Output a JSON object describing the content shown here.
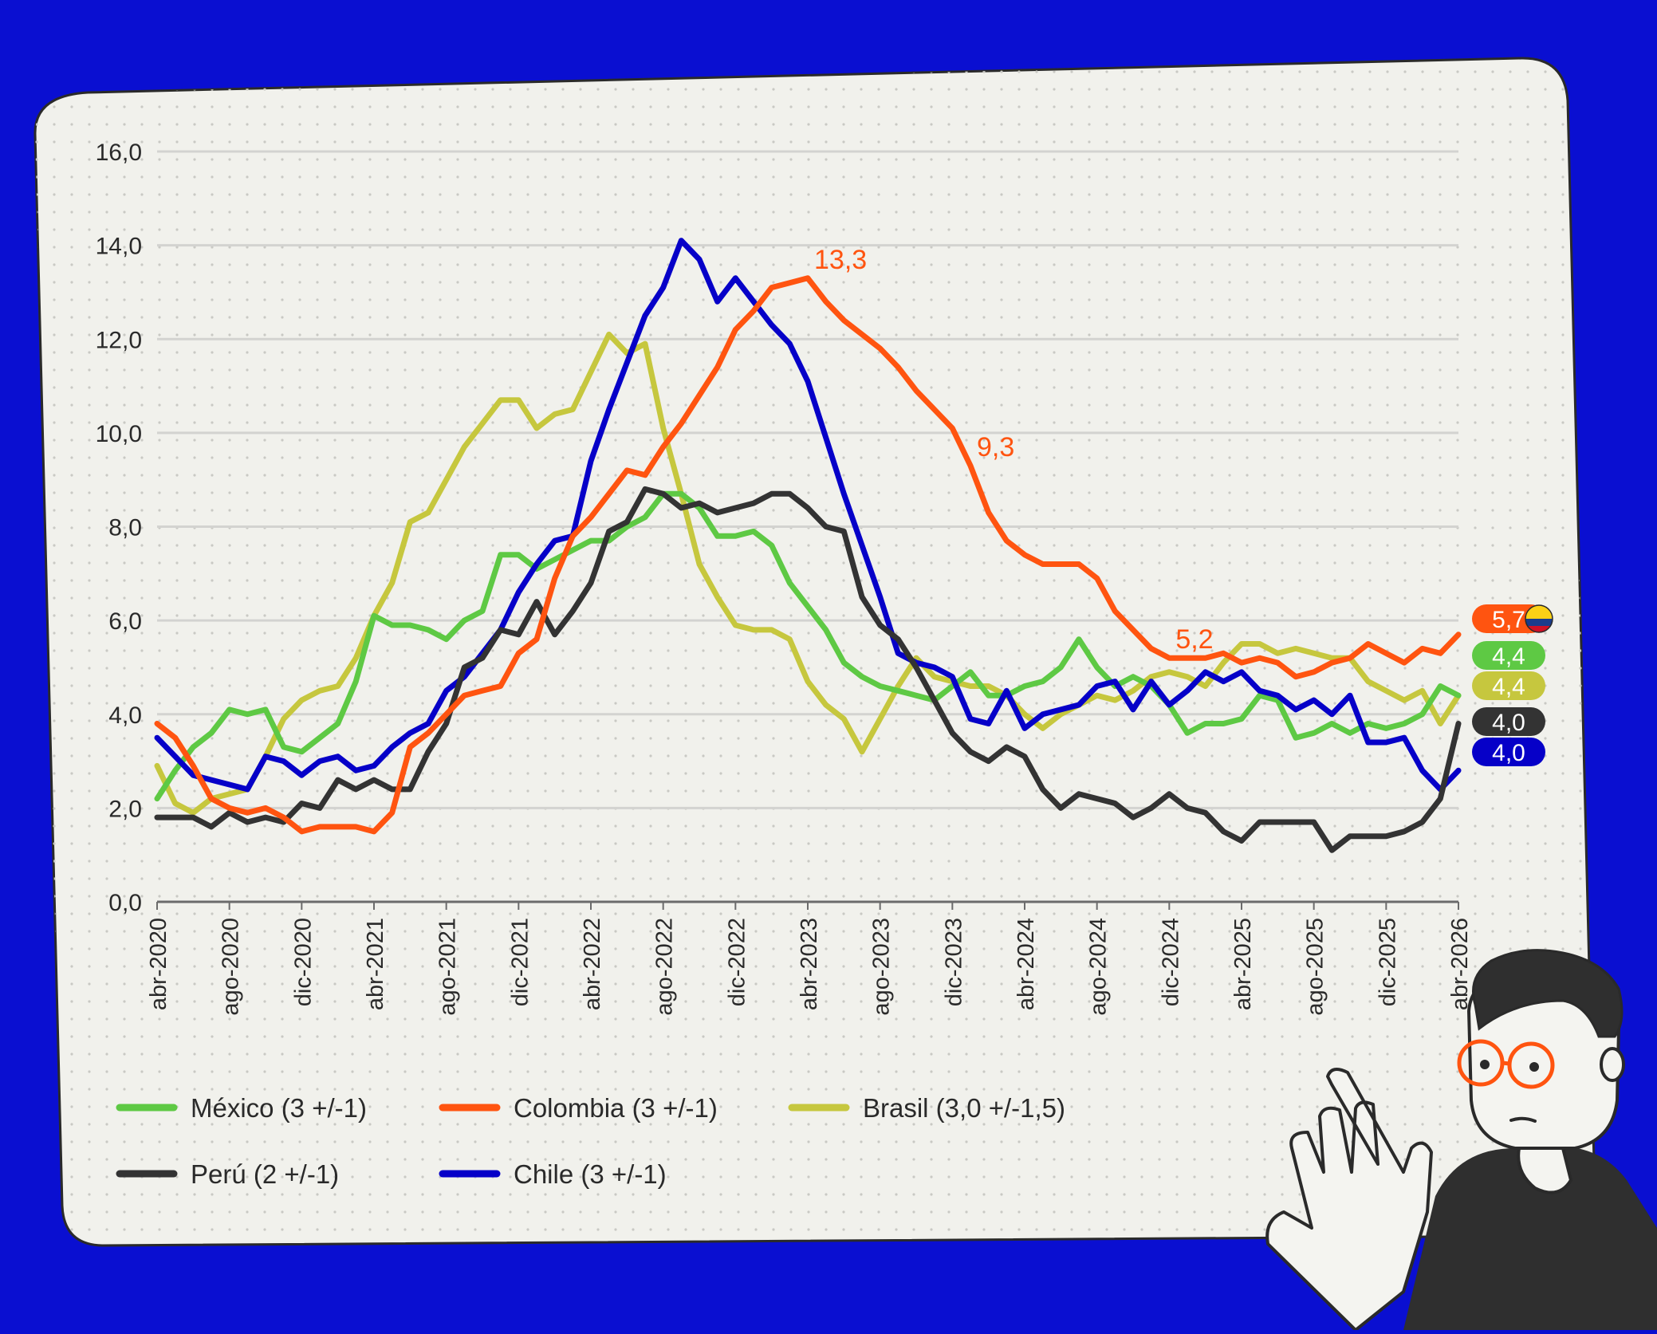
{
  "colors": {
    "background": "#0a0fd1",
    "card": "#f1f1ec",
    "grid": "#d3d3d0",
    "axis": "#6b6b6b",
    "text": "#2a2a2a"
  },
  "chart_data": {
    "type": "line",
    "title": "",
    "xlabel": "",
    "ylabel": "",
    "ylim": [
      0,
      16
    ],
    "yticks": [
      "0,0",
      "2,0",
      "4,0",
      "6,0",
      "8,0",
      "10,0",
      "12,0",
      "14,0",
      "16,0"
    ],
    "xticks": [
      "abr-2020",
      "ago-2020",
      "dic-2020",
      "abr-2021",
      "ago-2021",
      "dic-2021",
      "abr-2022",
      "ago-2022",
      "dic-2022",
      "abr-2023",
      "ago-2023",
      "dic-2023",
      "abr-2024",
      "ago-2024",
      "dic-2024",
      "abr-2025",
      "ago-2025",
      "dic-2025",
      "abr-2026"
    ],
    "x_start": "abr-2020",
    "x_end": "abr-2026",
    "grid": true,
    "legend_position": "bottom",
    "series": [
      {
        "name": "México (3 +/-1)",
        "color": "#5ec944",
        "end_label": "4,4",
        "values": [
          2.2,
          2.8,
          3.3,
          3.6,
          4.1,
          4.0,
          4.1,
          3.3,
          3.2,
          3.5,
          3.8,
          4.7,
          6.1,
          5.9,
          5.9,
          5.8,
          5.6,
          6.0,
          6.2,
          7.4,
          7.4,
          7.1,
          7.3,
          7.5,
          7.7,
          7.7,
          8.0,
          8.2,
          8.7,
          8.7,
          8.4,
          7.8,
          7.8,
          7.9,
          7.6,
          6.8,
          6.3,
          5.8,
          5.1,
          4.8,
          4.6,
          4.5,
          4.4,
          4.3,
          4.6,
          4.9,
          4.4,
          4.4,
          4.6,
          4.7,
          5.0,
          5.6,
          5.0,
          4.6,
          4.8,
          4.6,
          4.2,
          3.6,
          3.8,
          3.8,
          3.9,
          4.4,
          4.3,
          3.5,
          3.6,
          3.8,
          3.6,
          3.8,
          3.7,
          3.8,
          4.0,
          4.6,
          4.4
        ]
      },
      {
        "name": "Colombia (3 +/-1)",
        "color": "#ff5410",
        "end_label": "5,7",
        "annotations": [
          {
            "x_index": 36,
            "y": 13.3,
            "text": "13,3"
          },
          {
            "x_index": 45,
            "y": 9.3,
            "text": "9,3"
          },
          {
            "x_index": 56,
            "y": 5.2,
            "text": "5,2"
          }
        ],
        "values": [
          3.8,
          3.5,
          2.9,
          2.2,
          2.0,
          1.9,
          2.0,
          1.8,
          1.5,
          1.6,
          1.6,
          1.6,
          1.5,
          1.9,
          3.3,
          3.6,
          4.0,
          4.4,
          4.5,
          4.6,
          5.3,
          5.6,
          6.9,
          7.8,
          8.2,
          8.7,
          9.2,
          9.1,
          9.7,
          10.2,
          10.8,
          11.4,
          12.2,
          12.6,
          13.1,
          13.2,
          13.3,
          12.8,
          12.4,
          12.1,
          11.8,
          11.4,
          10.9,
          10.5,
          10.1,
          9.3,
          8.3,
          7.7,
          7.4,
          7.2,
          7.2,
          7.2,
          6.9,
          6.2,
          5.8,
          5.4,
          5.2,
          5.2,
          5.2,
          5.3,
          5.1,
          5.2,
          5.1,
          4.8,
          4.9,
          5.1,
          5.2,
          5.5,
          5.3,
          5.1,
          5.4,
          5.3,
          5.7
        ]
      },
      {
        "name": "Brasil (3,0 +/-1,5)",
        "color": "#c6c73e",
        "end_label": "4,4",
        "values": [
          2.9,
          2.1,
          1.9,
          2.2,
          2.3,
          2.4,
          3.1,
          3.9,
          4.3,
          4.5,
          4.6,
          5.2,
          6.1,
          6.8,
          8.1,
          8.3,
          9.0,
          9.7,
          10.2,
          10.7,
          10.7,
          10.1,
          10.4,
          10.5,
          11.3,
          12.1,
          11.7,
          11.9,
          10.1,
          8.7,
          7.2,
          6.5,
          5.9,
          5.8,
          5.8,
          5.6,
          4.7,
          4.2,
          3.9,
          3.2,
          3.9,
          4.6,
          5.2,
          4.8,
          4.7,
          4.6,
          4.6,
          4.4,
          4.0,
          3.7,
          4.0,
          4.2,
          4.4,
          4.3,
          4.5,
          4.8,
          4.9,
          4.8,
          4.6,
          5.1,
          5.5,
          5.5,
          5.3,
          5.4,
          5.3,
          5.2,
          5.2,
          4.7,
          4.5,
          4.3,
          4.5,
          3.8,
          4.4
        ]
      },
      {
        "name": "Perú (2 +/-1)",
        "color": "#333333",
        "end_label": "4,0",
        "values": [
          1.8,
          1.8,
          1.8,
          1.6,
          1.9,
          1.7,
          1.8,
          1.7,
          2.1,
          2.0,
          2.6,
          2.4,
          2.6,
          2.4,
          2.4,
          3.2,
          3.8,
          5.0,
          5.2,
          5.8,
          5.7,
          6.4,
          5.7,
          6.2,
          6.8,
          7.9,
          8.1,
          8.8,
          8.7,
          8.4,
          8.5,
          8.3,
          8.4,
          8.5,
          8.7,
          8.7,
          8.4,
          8.0,
          7.9,
          6.5,
          5.9,
          5.6,
          5.0,
          4.3,
          3.6,
          3.2,
          3.0,
          3.3,
          3.1,
          2.4,
          2.0,
          2.3,
          2.2,
          2.1,
          1.8,
          2.0,
          2.3,
          2.0,
          1.9,
          1.5,
          1.3,
          1.7,
          1.7,
          1.7,
          1.7,
          1.1,
          1.4,
          1.4,
          1.4,
          1.5,
          1.7,
          2.2,
          3.8,
          4.0
        ]
      },
      {
        "name": "Chile (3 +/-1)",
        "color": "#0600c8",
        "end_label": "4,0",
        "values": [
          3.5,
          3.1,
          2.7,
          2.6,
          2.5,
          2.4,
          3.1,
          3.0,
          2.7,
          3.0,
          3.1,
          2.8,
          2.9,
          3.3,
          3.6,
          3.8,
          4.5,
          4.8,
          5.3,
          5.8,
          6.6,
          7.2,
          7.7,
          7.8,
          9.4,
          10.5,
          11.5,
          12.5,
          13.1,
          14.1,
          13.7,
          12.8,
          13.3,
          12.8,
          12.3,
          11.9,
          11.1,
          9.9,
          8.7,
          7.6,
          6.5,
          5.3,
          5.1,
          5.0,
          4.8,
          3.9,
          3.8,
          4.5,
          3.7,
          4.0,
          4.1,
          4.2,
          4.6,
          4.7,
          4.1,
          4.7,
          4.2,
          4.5,
          4.9,
          4.7,
          4.9,
          4.5,
          4.4,
          4.1,
          4.3,
          4.0,
          4.4,
          3.4,
          3.4,
          3.5,
          2.8,
          2.4,
          2.8,
          4.0
        ]
      }
    ]
  }
}
